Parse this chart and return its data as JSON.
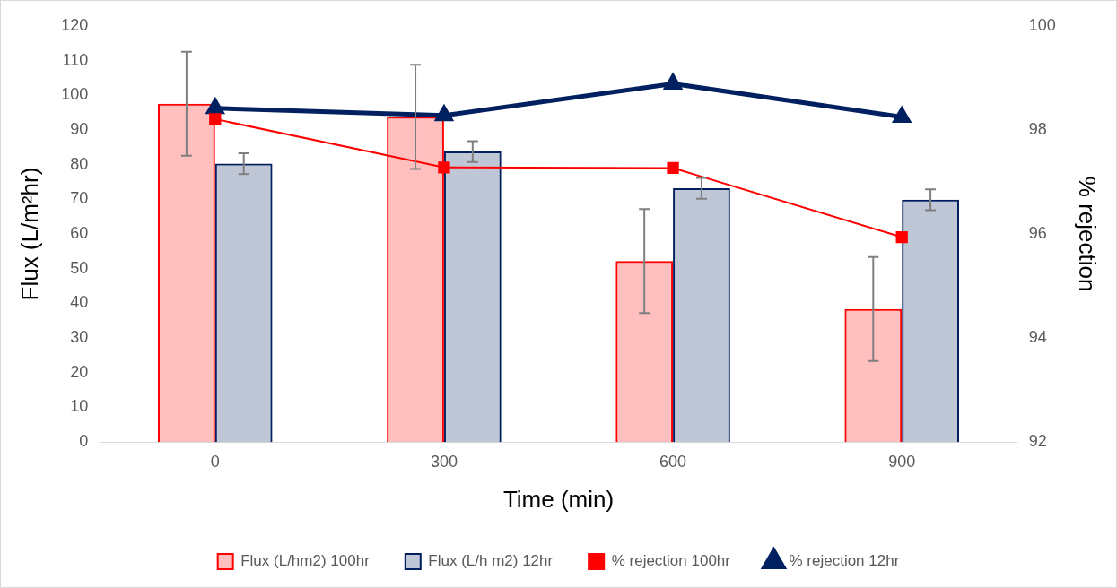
{
  "chart_data": {
    "type": "bar",
    "xlabel": "Time (min)",
    "ylabel": "Flux (L/m²hr)",
    "y2label": "% rejection",
    "categories": [
      "0",
      "300",
      "600",
      "900"
    ],
    "series": [
      {
        "name": "Flux (L/hm2) 100hr",
        "color": "#ff0000",
        "values": [
          97.6,
          93.8,
          52.2,
          38.4
        ],
        "errors": [
          15,
          15,
          15,
          15
        ]
      },
      {
        "name": "Flux (L/h m2) 12hr",
        "color": "#002060",
        "values": [
          80.3,
          83.8,
          73.2,
          69.9
        ],
        "errors": [
          3,
          3,
          3,
          3
        ]
      },
      {
        "name": "% rejection 100hr",
        "type": "line",
        "axis": "y2",
        "marker": "square",
        "color": "#ff0000",
        "values": [
          98.21,
          97.28,
          97.27,
          95.94
        ]
      },
      {
        "name": "% rejection 12hr",
        "type": "line",
        "axis": "y2",
        "marker": "triangle",
        "color": "#002060",
        "values": [
          98.42,
          98.28,
          98.89,
          98.25
        ]
      }
    ],
    "ylim": [
      0,
      120
    ],
    "yticks": [
      0,
      10,
      20,
      30,
      40,
      50,
      60,
      70,
      80,
      90,
      100,
      110,
      120
    ],
    "y2lim": [
      92,
      100
    ],
    "y2ticks": [
      92,
      94,
      96,
      98,
      100
    ],
    "grid": false,
    "legend": "bottom"
  }
}
